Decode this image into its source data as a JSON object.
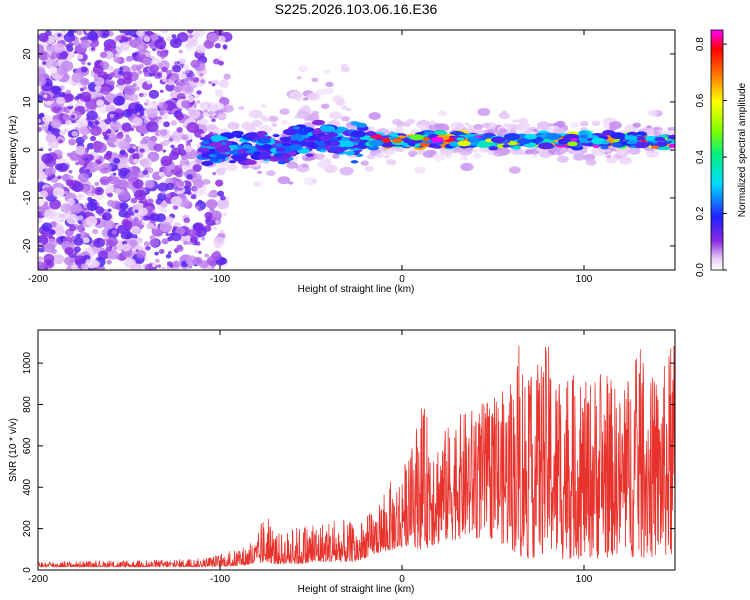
{
  "page_title": "S225.2026.103.06.16.E36",
  "colors": {
    "background": "#ffffff",
    "axes": "#000000",
    "snr_line": "#e8322c"
  },
  "chart_data": [
    {
      "type": "heatmap",
      "title": "S225.2026.103.06.16.E36",
      "xlabel": "Height of straight line (km)",
      "ylabel": "Frequency (Hz)",
      "xlim": [
        -200,
        150
      ],
      "ylim": [
        -25,
        25
      ],
      "xticks": [
        -200,
        -100,
        0,
        100
      ],
      "xtick_labels": [
        "-200",
        "-100",
        "0",
        "100"
      ],
      "yticks": [
        20,
        10,
        0,
        -10,
        -20
      ],
      "ytick_labels": [
        "20",
        "10",
        "0",
        "-10",
        "-20"
      ],
      "colorbar": {
        "label": "Normalized spectral amplitude",
        "range": [
          0.0,
          0.85
        ],
        "ticks": [
          0.0,
          0.2,
          0.4,
          0.6,
          0.8
        ],
        "tick_labels": [
          "0.0",
          "0.2",
          "0.4",
          "0.6",
          "0.8"
        ],
        "colormap": "rainbow (white-violet-blue-cyan-green-yellow-red-magenta)"
      },
      "features": {
        "noise_region_x": [
          -200,
          -110
        ],
        "signal_band_center_hz": 2,
        "signal_band_start_x": -110,
        "signal_band_strongest_x": [
          -20,
          150
        ]
      }
    },
    {
      "type": "line",
      "xlabel": "Height of straight line (km)",
      "ylabel": "SNR (10 * v/v)",
      "xlim": [
        -200,
        150
      ],
      "ylim": [
        0,
        1160
      ],
      "xticks": [
        -200,
        -100,
        0,
        100
      ],
      "xtick_labels": [
        "-200",
        "-100",
        "0",
        "100"
      ],
      "yticks": [
        0,
        200,
        400,
        600,
        800,
        1000
      ],
      "ytick_labels": [
        "0",
        "200",
        "400",
        "600",
        "800",
        "1000"
      ],
      "series": [
        {
          "name": "SNR",
          "color": "#e8322c",
          "envelope_x": [
            -200,
            -150,
            -110,
            -90,
            -80,
            -75,
            -70,
            -55,
            -45,
            -35,
            -25,
            -15,
            -5,
            5,
            10,
            20,
            30,
            40,
            50,
            60,
            65,
            70,
            80,
            85,
            90,
            100,
            110,
            120,
            130,
            140,
            150
          ],
          "envelope_min": [
            15,
            15,
            15,
            20,
            30,
            40,
            30,
            30,
            40,
            40,
            40,
            80,
            100,
            120,
            100,
            120,
            150,
            150,
            150,
            100,
            50,
            50,
            80,
            50,
            50,
            60,
            50,
            80,
            50,
            60,
            50
          ],
          "envelope_max": [
            40,
            45,
            55,
            100,
            150,
            290,
            170,
            220,
            240,
            250,
            220,
            300,
            450,
            560,
            820,
            650,
            740,
            800,
            830,
            900,
            1120,
            920,
            1110,
            950,
            980,
            900,
            1000,
            850,
            1090,
            900,
            1140
          ]
        }
      ]
    }
  ]
}
